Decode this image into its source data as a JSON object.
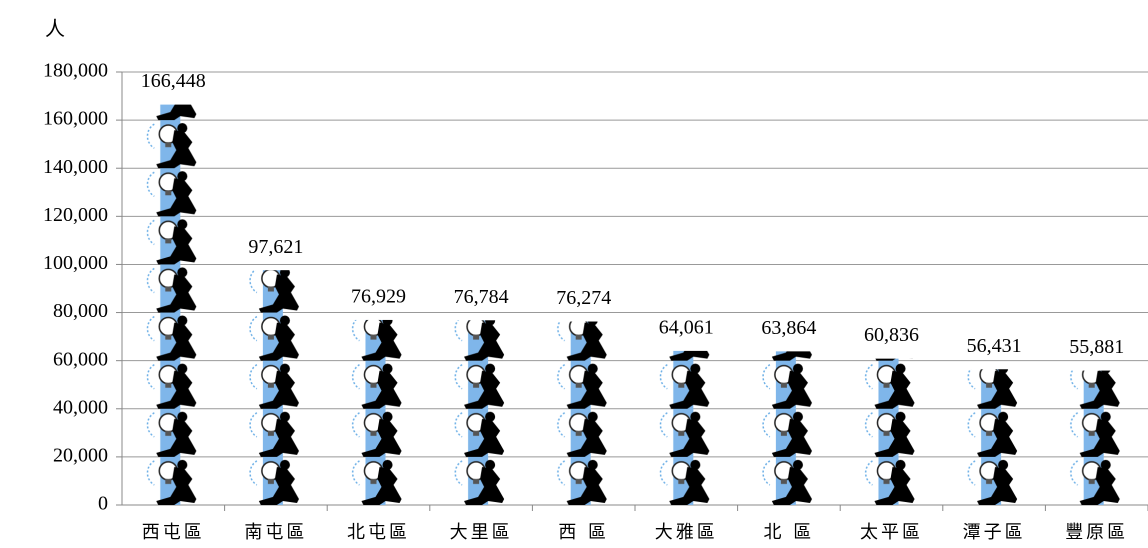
{
  "chart_data": {
    "type": "pictograph",
    "y_axis_label": "人",
    "categories": [
      "西屯區",
      "南屯區",
      "北屯區",
      "大里區",
      "西 區",
      "大雅區",
      "北 區",
      "太平區",
      "潭子區",
      "豐原區"
    ],
    "values": [
      166448,
      97621,
      76929,
      76784,
      76274,
      64061,
      63864,
      60836,
      56431,
      55881
    ],
    "value_labels": [
      "166,448",
      "97,621",
      "76,929",
      "76,784",
      "76,274",
      "64,061",
      "63,864",
      "60,836",
      "56,431",
      "55,881"
    ],
    "ylim": [
      0,
      180000
    ],
    "yticks": [
      0,
      {
        "value": 20000,
        "label": "20,000"
      },
      {
        "value": 40000,
        "label": "40,000"
      },
      {
        "value": 60000,
        "label": "60,000"
      },
      {
        "value": 80000,
        "label": "80,000"
      },
      {
        "value": 100000,
        "label": "100,000"
      },
      {
        "value": 120000,
        "label": "120,000"
      },
      {
        "value": 140000,
        "label": "140,000"
      },
      {
        "value": 160000,
        "label": "160,000"
      },
      {
        "value": 180000,
        "label": "180,000"
      }
    ],
    "grid": true
  }
}
